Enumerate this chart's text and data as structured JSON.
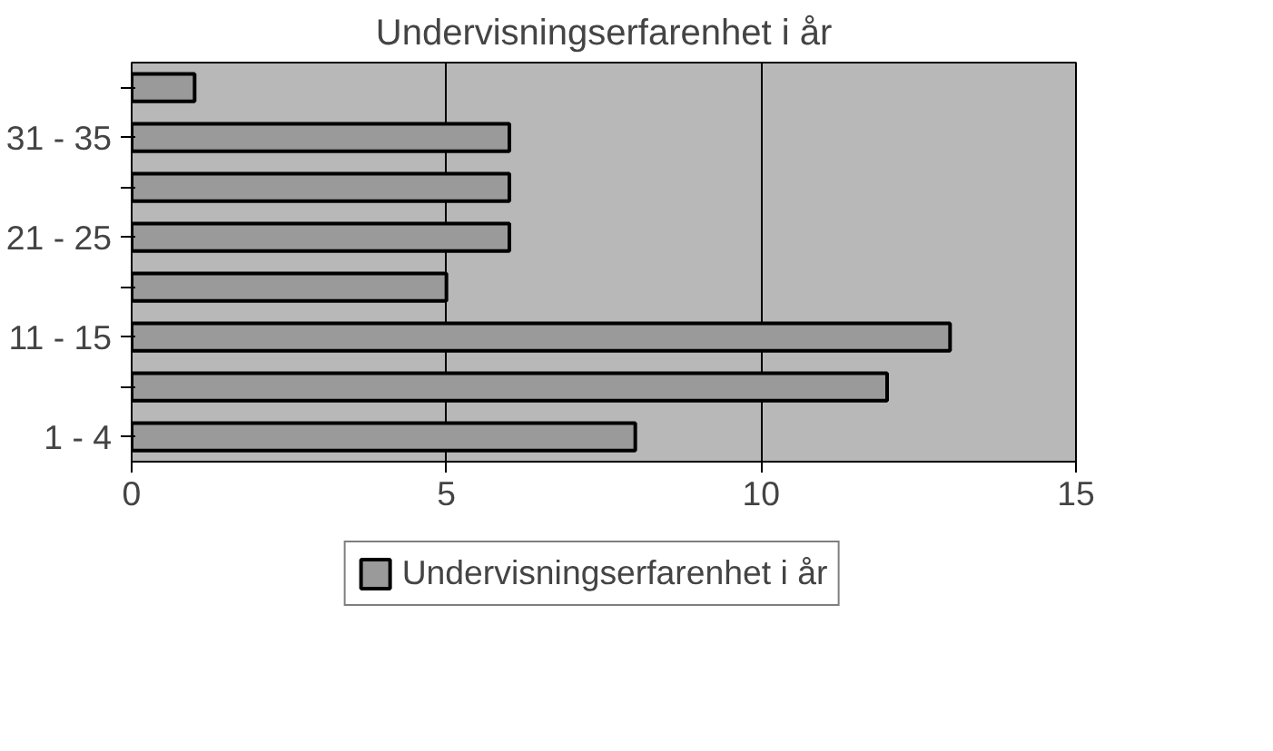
{
  "chart_data": {
    "type": "bar",
    "orientation": "horizontal",
    "title": "Undervisningserfarenhet i år",
    "categories": [
      null,
      "31 - 35",
      null,
      "21 - 25",
      null,
      "11 - 15",
      null,
      "1 - 4"
    ],
    "series": [
      {
        "name": "Undervisningserfarenhet i år",
        "color": "#9a9a9a",
        "values": [
          1,
          6,
          6,
          6,
          5,
          13,
          12,
          8
        ]
      }
    ],
    "xlim": [
      0,
      15
    ],
    "xticks": [
      0,
      5,
      10,
      15
    ],
    "grid": "x",
    "legend": "bottom"
  }
}
